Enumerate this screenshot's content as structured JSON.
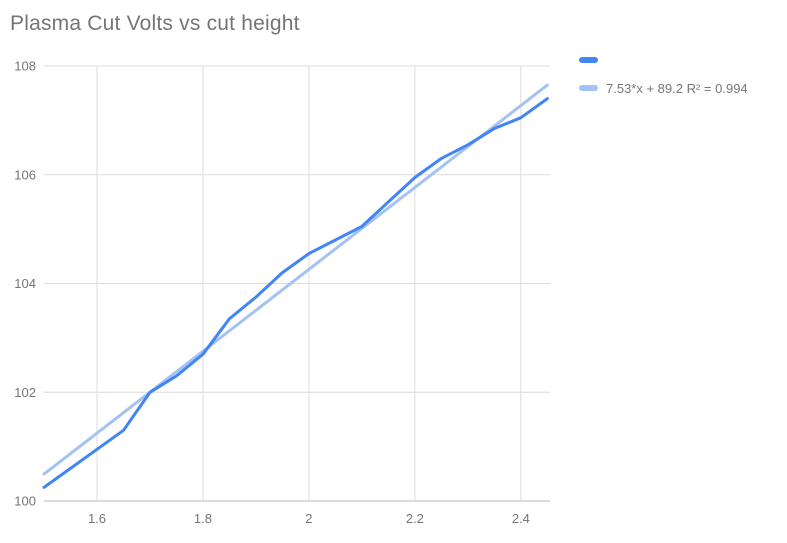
{
  "title": "Plasma Cut Volts vs cut height",
  "colors": {
    "series": "#4285f4",
    "trendline": "#a4c2f4",
    "title_text": "#757575",
    "tick_text": "#757575",
    "legend_text": "#757575",
    "gridline": "#dcdcdc",
    "baseline": "#b7b7b7",
    "background": "#ffffff"
  },
  "legend": {
    "position": "top-right",
    "items": [
      {
        "label": "",
        "swatch_color": "#4285f4",
        "swatch_name": "series-swatch"
      },
      {
        "label": "7.53*x + 89.2 R² = 0.994",
        "swatch_color": "#a4c2f4",
        "swatch_name": "trendline-swatch"
      }
    ]
  },
  "chart_data": {
    "type": "line",
    "title": "Plasma Cut Volts vs cut height",
    "xlabel": "",
    "ylabel": "",
    "xlim": [
      1.5,
      2.455
    ],
    "ylim": [
      100,
      108
    ],
    "grid": true,
    "legend_position": "top-right",
    "x_ticks": {
      "values": [
        1.6,
        1.8,
        2.0,
        2.2,
        2.4
      ],
      "labels": [
        "1.6",
        "1.8",
        "2",
        "2.2",
        "2.4"
      ]
    },
    "y_ticks": {
      "values": [
        100,
        102,
        104,
        106,
        108
      ],
      "labels": [
        "100",
        "102",
        "104",
        "106",
        "108"
      ]
    },
    "series": [
      {
        "name": "Plasma Cut Volts",
        "color": "#4285f4",
        "x": [
          1.5,
          1.55,
          1.6,
          1.65,
          1.7,
          1.75,
          1.8,
          1.85,
          1.9,
          1.95,
          2.0,
          2.05,
          2.1,
          2.15,
          2.2,
          2.25,
          2.3,
          2.35,
          2.4,
          2.45
        ],
        "y": [
          100.25,
          100.6,
          100.95,
          101.3,
          102.0,
          102.3,
          102.7,
          103.35,
          103.75,
          104.2,
          104.55,
          104.8,
          105.05,
          105.5,
          105.95,
          106.3,
          106.55,
          106.85,
          107.05,
          107.4
        ]
      }
    ],
    "trendline": {
      "label": "7.53*x + 89.2 R² = 0.994",
      "slope": 7.53,
      "intercept": 89.2,
      "r_squared": 0.994,
      "color": "#a4c2f4",
      "x_range": [
        1.5,
        2.45
      ]
    }
  }
}
